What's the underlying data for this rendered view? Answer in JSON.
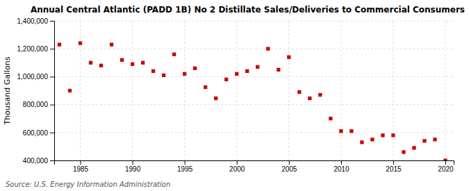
{
  "chart_data": {
    "type": "scatter",
    "title": "Annual Central Atlantic (PADD 1B) No 2 Distillate Sales/Deliveries to Commercial Consumers",
    "ylabel": "Thousand Gallons",
    "source": "Source: U.S. Energy Information Administration",
    "color": "#cc0000",
    "marker": "square",
    "grid": true,
    "x": [
      1983,
      1984,
      1985,
      1986,
      1987,
      1988,
      1989,
      1990,
      1991,
      1992,
      1993,
      1994,
      1995,
      1996,
      1997,
      1998,
      1999,
      2000,
      2001,
      2002,
      2003,
      2004,
      2005,
      2006,
      2007,
      2008,
      2009,
      2010,
      2011,
      2012,
      2013,
      2014,
      2015,
      2016,
      2017,
      2018,
      2019,
      2020
    ],
    "values": [
      1230000,
      900000,
      1240000,
      1100000,
      1080000,
      1230000,
      1120000,
      1090000,
      1100000,
      1040000,
      1010000,
      1160000,
      1020000,
      1060000,
      925000,
      845000,
      980000,
      1020000,
      1040000,
      1070000,
      1200000,
      1050000,
      1140000,
      890000,
      845000,
      870000,
      700000,
      610000,
      610000,
      530000,
      550000,
      580000,
      580000,
      460000,
      490000,
      540000,
      550000,
      400000
    ],
    "xlim": [
      1982.5,
      2020.8
    ],
    "xticks": [
      1985,
      1990,
      1995,
      2000,
      2005,
      2010,
      2015,
      2020
    ],
    "ylim": [
      400000,
      1400000
    ],
    "yticks": [
      {
        "value": 400000,
        "label": "400,000"
      },
      {
        "value": 600000,
        "label": "600,000"
      },
      {
        "value": 800000,
        "label": "800,000"
      },
      {
        "value": 1000000,
        "label": "1,000,000"
      },
      {
        "value": 1200000,
        "label": "1,200,000"
      },
      {
        "value": 1400000,
        "label": "1,400,000"
      }
    ]
  }
}
